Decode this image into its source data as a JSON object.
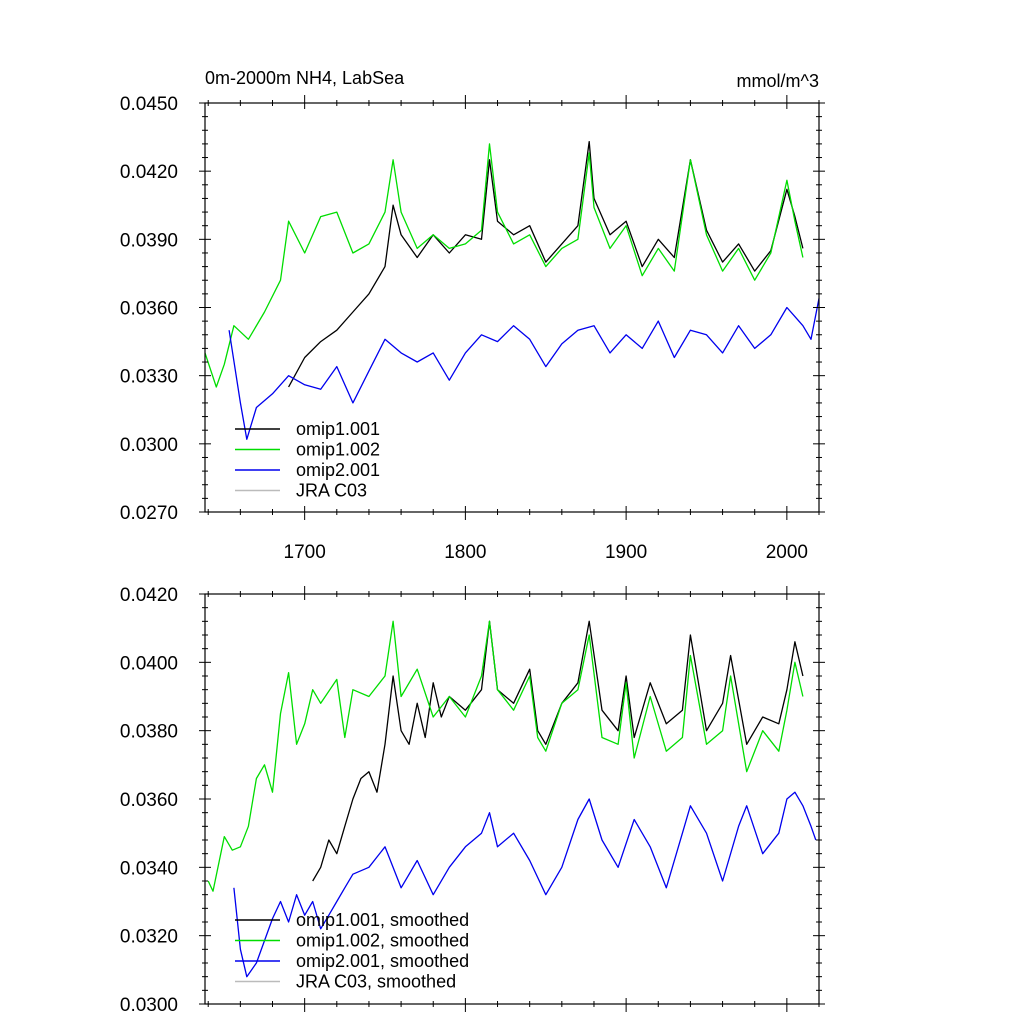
{
  "chart_data": [
    {
      "type": "line",
      "title": "0m-2000m NH4, LabSea",
      "units": "mmol/m^3",
      "xlim": [
        1638,
        2020
      ],
      "ylim": [
        0.027,
        0.045
      ],
      "x_ticks": [
        1700,
        1800,
        1900,
        2000
      ],
      "x_tick_labels": [
        "1700",
        "1800",
        "1900",
        "2000"
      ],
      "y_ticks": [
        0.027,
        0.03,
        0.033,
        0.036,
        0.039,
        0.042,
        0.045
      ],
      "y_tick_labels": [
        "0.0270",
        "0.0300",
        "0.0330",
        "0.0360",
        "0.0390",
        "0.0420",
        "0.0450"
      ],
      "legend_position": "bottom-left",
      "series": [
        {
          "name": "omip1.001",
          "color": "#000000",
          "x": [
            1690,
            1700,
            1710,
            1720,
            1730,
            1740,
            1750,
            1755,
            1760,
            1770,
            1780,
            1790,
            1800,
            1810,
            1815,
            1820,
            1830,
            1840,
            1850,
            1860,
            1870,
            1877,
            1880,
            1890,
            1900,
            1910,
            1920,
            1930,
            1940,
            1950,
            1960,
            1970,
            1980,
            1990,
            2000,
            2005,
            2010
          ],
          "values": [
            0.0325,
            0.0338,
            0.0345,
            0.035,
            0.0358,
            0.0366,
            0.0378,
            0.0405,
            0.0392,
            0.0382,
            0.0392,
            0.0384,
            0.0392,
            0.039,
            0.0425,
            0.0398,
            0.0392,
            0.0396,
            0.038,
            0.0388,
            0.0396,
            0.0433,
            0.0408,
            0.0392,
            0.0398,
            0.0378,
            0.039,
            0.0382,
            0.0425,
            0.0394,
            0.038,
            0.0388,
            0.0376,
            0.0385,
            0.0412,
            0.04,
            0.0386
          ]
        },
        {
          "name": "omip1.002",
          "color": "#00dd00",
          "x": [
            1638,
            1645,
            1650,
            1656,
            1665,
            1675,
            1685,
            1690,
            1700,
            1710,
            1720,
            1730,
            1740,
            1750,
            1755,
            1760,
            1770,
            1780,
            1790,
            1800,
            1810,
            1815,
            1820,
            1830,
            1840,
            1850,
            1860,
            1870,
            1877,
            1880,
            1890,
            1900,
            1910,
            1920,
            1930,
            1940,
            1950,
            1960,
            1970,
            1980,
            1990,
            2000,
            2005,
            2010
          ],
          "values": [
            0.034,
            0.0325,
            0.0335,
            0.0352,
            0.0346,
            0.0358,
            0.0372,
            0.0398,
            0.0384,
            0.04,
            0.0402,
            0.0384,
            0.0388,
            0.0402,
            0.0425,
            0.0402,
            0.0386,
            0.0392,
            0.0386,
            0.0388,
            0.0394,
            0.0432,
            0.0402,
            0.0388,
            0.0392,
            0.0378,
            0.0386,
            0.039,
            0.0428,
            0.0404,
            0.0386,
            0.0396,
            0.0374,
            0.0386,
            0.0376,
            0.0425,
            0.0392,
            0.0376,
            0.0386,
            0.0372,
            0.0384,
            0.0416,
            0.0398,
            0.0382
          ]
        },
        {
          "name": "omip2.001",
          "color": "#0000ee",
          "x": [
            1653,
            1660,
            1664,
            1670,
            1680,
            1690,
            1700,
            1710,
            1720,
            1730,
            1740,
            1750,
            1760,
            1770,
            1780,
            1790,
            1800,
            1810,
            1820,
            1830,
            1840,
            1850,
            1860,
            1870,
            1880,
            1890,
            1900,
            1910,
            1920,
            1930,
            1940,
            1950,
            1960,
            1970,
            1980,
            1990,
            2000,
            2005,
            2010,
            2015,
            2020
          ],
          "values": [
            0.035,
            0.0318,
            0.0302,
            0.0316,
            0.0322,
            0.033,
            0.0326,
            0.0324,
            0.0334,
            0.0318,
            0.0332,
            0.0346,
            0.034,
            0.0336,
            0.034,
            0.0328,
            0.034,
            0.0348,
            0.0345,
            0.0352,
            0.0346,
            0.0334,
            0.0344,
            0.035,
            0.0352,
            0.034,
            0.0348,
            0.0342,
            0.0354,
            0.0338,
            0.035,
            0.0348,
            0.034,
            0.0352,
            0.0342,
            0.0348,
            0.036,
            0.0356,
            0.0352,
            0.0346,
            0.0364
          ]
        },
        {
          "name": "JRA C03",
          "color": "#bbbbbb",
          "x": [],
          "values": []
        }
      ]
    },
    {
      "type": "line",
      "title": "",
      "units": "",
      "xlim": [
        1638,
        2020
      ],
      "ylim": [
        0.03,
        0.042
      ],
      "x_ticks": [
        1700,
        1800,
        1900,
        2000
      ],
      "x_tick_labels": [
        "",
        "",
        "",
        ""
      ],
      "y_ticks": [
        0.03,
        0.032,
        0.034,
        0.036,
        0.038,
        0.04,
        0.042
      ],
      "y_tick_labels": [
        "0.0300",
        "0.0320",
        "0.0340",
        "0.0360",
        "0.0380",
        "0.0400",
        "0.0420"
      ],
      "legend_position": "bottom-left",
      "series": [
        {
          "name": "omip1.001, smoothed",
          "color": "#000000",
          "x": [
            1705,
            1710,
            1715,
            1720,
            1725,
            1730,
            1735,
            1740,
            1745,
            1750,
            1755,
            1760,
            1765,
            1770,
            1775,
            1780,
            1785,
            1790,
            1800,
            1810,
            1815,
            1820,
            1830,
            1840,
            1845,
            1850,
            1860,
            1870,
            1877,
            1885,
            1895,
            1900,
            1905,
            1915,
            1925,
            1935,
            1940,
            1950,
            1960,
            1965,
            1975,
            1985,
            1995,
            2000,
            2005,
            2010
          ],
          "values": [
            0.0336,
            0.034,
            0.0348,
            0.0344,
            0.0352,
            0.036,
            0.0366,
            0.0368,
            0.0362,
            0.0376,
            0.0396,
            0.038,
            0.0376,
            0.0388,
            0.0378,
            0.0394,
            0.0384,
            0.039,
            0.0386,
            0.0392,
            0.0412,
            0.0392,
            0.0388,
            0.0398,
            0.038,
            0.0376,
            0.0388,
            0.0394,
            0.0412,
            0.0386,
            0.038,
            0.0396,
            0.0378,
            0.0394,
            0.0382,
            0.0386,
            0.0408,
            0.038,
            0.0388,
            0.0402,
            0.0376,
            0.0384,
            0.0382,
            0.0392,
            0.0406,
            0.0396
          ]
        },
        {
          "name": "omip1.002, smoothed",
          "color": "#00dd00",
          "x": [
            1640,
            1643,
            1650,
            1655,
            1660,
            1665,
            1670,
            1675,
            1680,
            1685,
            1690,
            1695,
            1700,
            1705,
            1710,
            1720,
            1725,
            1730,
            1740,
            1750,
            1755,
            1760,
            1770,
            1780,
            1790,
            1800,
            1810,
            1815,
            1820,
            1830,
            1840,
            1845,
            1850,
            1860,
            1870,
            1877,
            1885,
            1895,
            1900,
            1905,
            1915,
            1925,
            1935,
            1940,
            1950,
            1960,
            1965,
            1975,
            1985,
            1995,
            2000,
            2005,
            2010
          ],
          "values": [
            0.0336,
            0.0333,
            0.0349,
            0.0345,
            0.0346,
            0.0352,
            0.0366,
            0.037,
            0.0362,
            0.0385,
            0.0397,
            0.0376,
            0.0382,
            0.0392,
            0.0388,
            0.0395,
            0.0378,
            0.0392,
            0.039,
            0.0396,
            0.0412,
            0.039,
            0.0398,
            0.0384,
            0.039,
            0.0384,
            0.0396,
            0.0412,
            0.0392,
            0.0386,
            0.0396,
            0.0378,
            0.0374,
            0.0388,
            0.0392,
            0.0408,
            0.0378,
            0.0376,
            0.0394,
            0.0372,
            0.039,
            0.0374,
            0.0378,
            0.0402,
            0.0376,
            0.038,
            0.0396,
            0.0368,
            0.038,
            0.0374,
            0.0386,
            0.04,
            0.039
          ]
        },
        {
          "name": "omip2.001, smoothed",
          "color": "#0000ee",
          "x": [
            1656,
            1660,
            1664,
            1670,
            1680,
            1685,
            1690,
            1695,
            1700,
            1705,
            1710,
            1715,
            1720,
            1725,
            1730,
            1740,
            1750,
            1760,
            1770,
            1780,
            1790,
            1800,
            1810,
            1815,
            1820,
            1830,
            1840,
            1850,
            1860,
            1870,
            1877,
            1885,
            1895,
            1905,
            1915,
            1925,
            1935,
            1940,
            1950,
            1960,
            1970,
            1975,
            1985,
            1995,
            2000,
            2005,
            2010,
            2015,
            2018
          ],
          "values": [
            0.0334,
            0.0316,
            0.0308,
            0.0312,
            0.0325,
            0.033,
            0.0324,
            0.0332,
            0.0326,
            0.033,
            0.0322,
            0.0326,
            0.033,
            0.0334,
            0.0338,
            0.034,
            0.0346,
            0.0334,
            0.0342,
            0.0332,
            0.034,
            0.0346,
            0.035,
            0.0356,
            0.0346,
            0.035,
            0.0342,
            0.0332,
            0.034,
            0.0354,
            0.036,
            0.0348,
            0.034,
            0.0354,
            0.0346,
            0.0334,
            0.035,
            0.0358,
            0.035,
            0.0336,
            0.0352,
            0.0358,
            0.0344,
            0.035,
            0.036,
            0.0362,
            0.0358,
            0.0352,
            0.0348
          ]
        },
        {
          "name": "JRA C03, smoothed",
          "color": "#bbbbbb",
          "x": [],
          "values": []
        }
      ]
    }
  ]
}
